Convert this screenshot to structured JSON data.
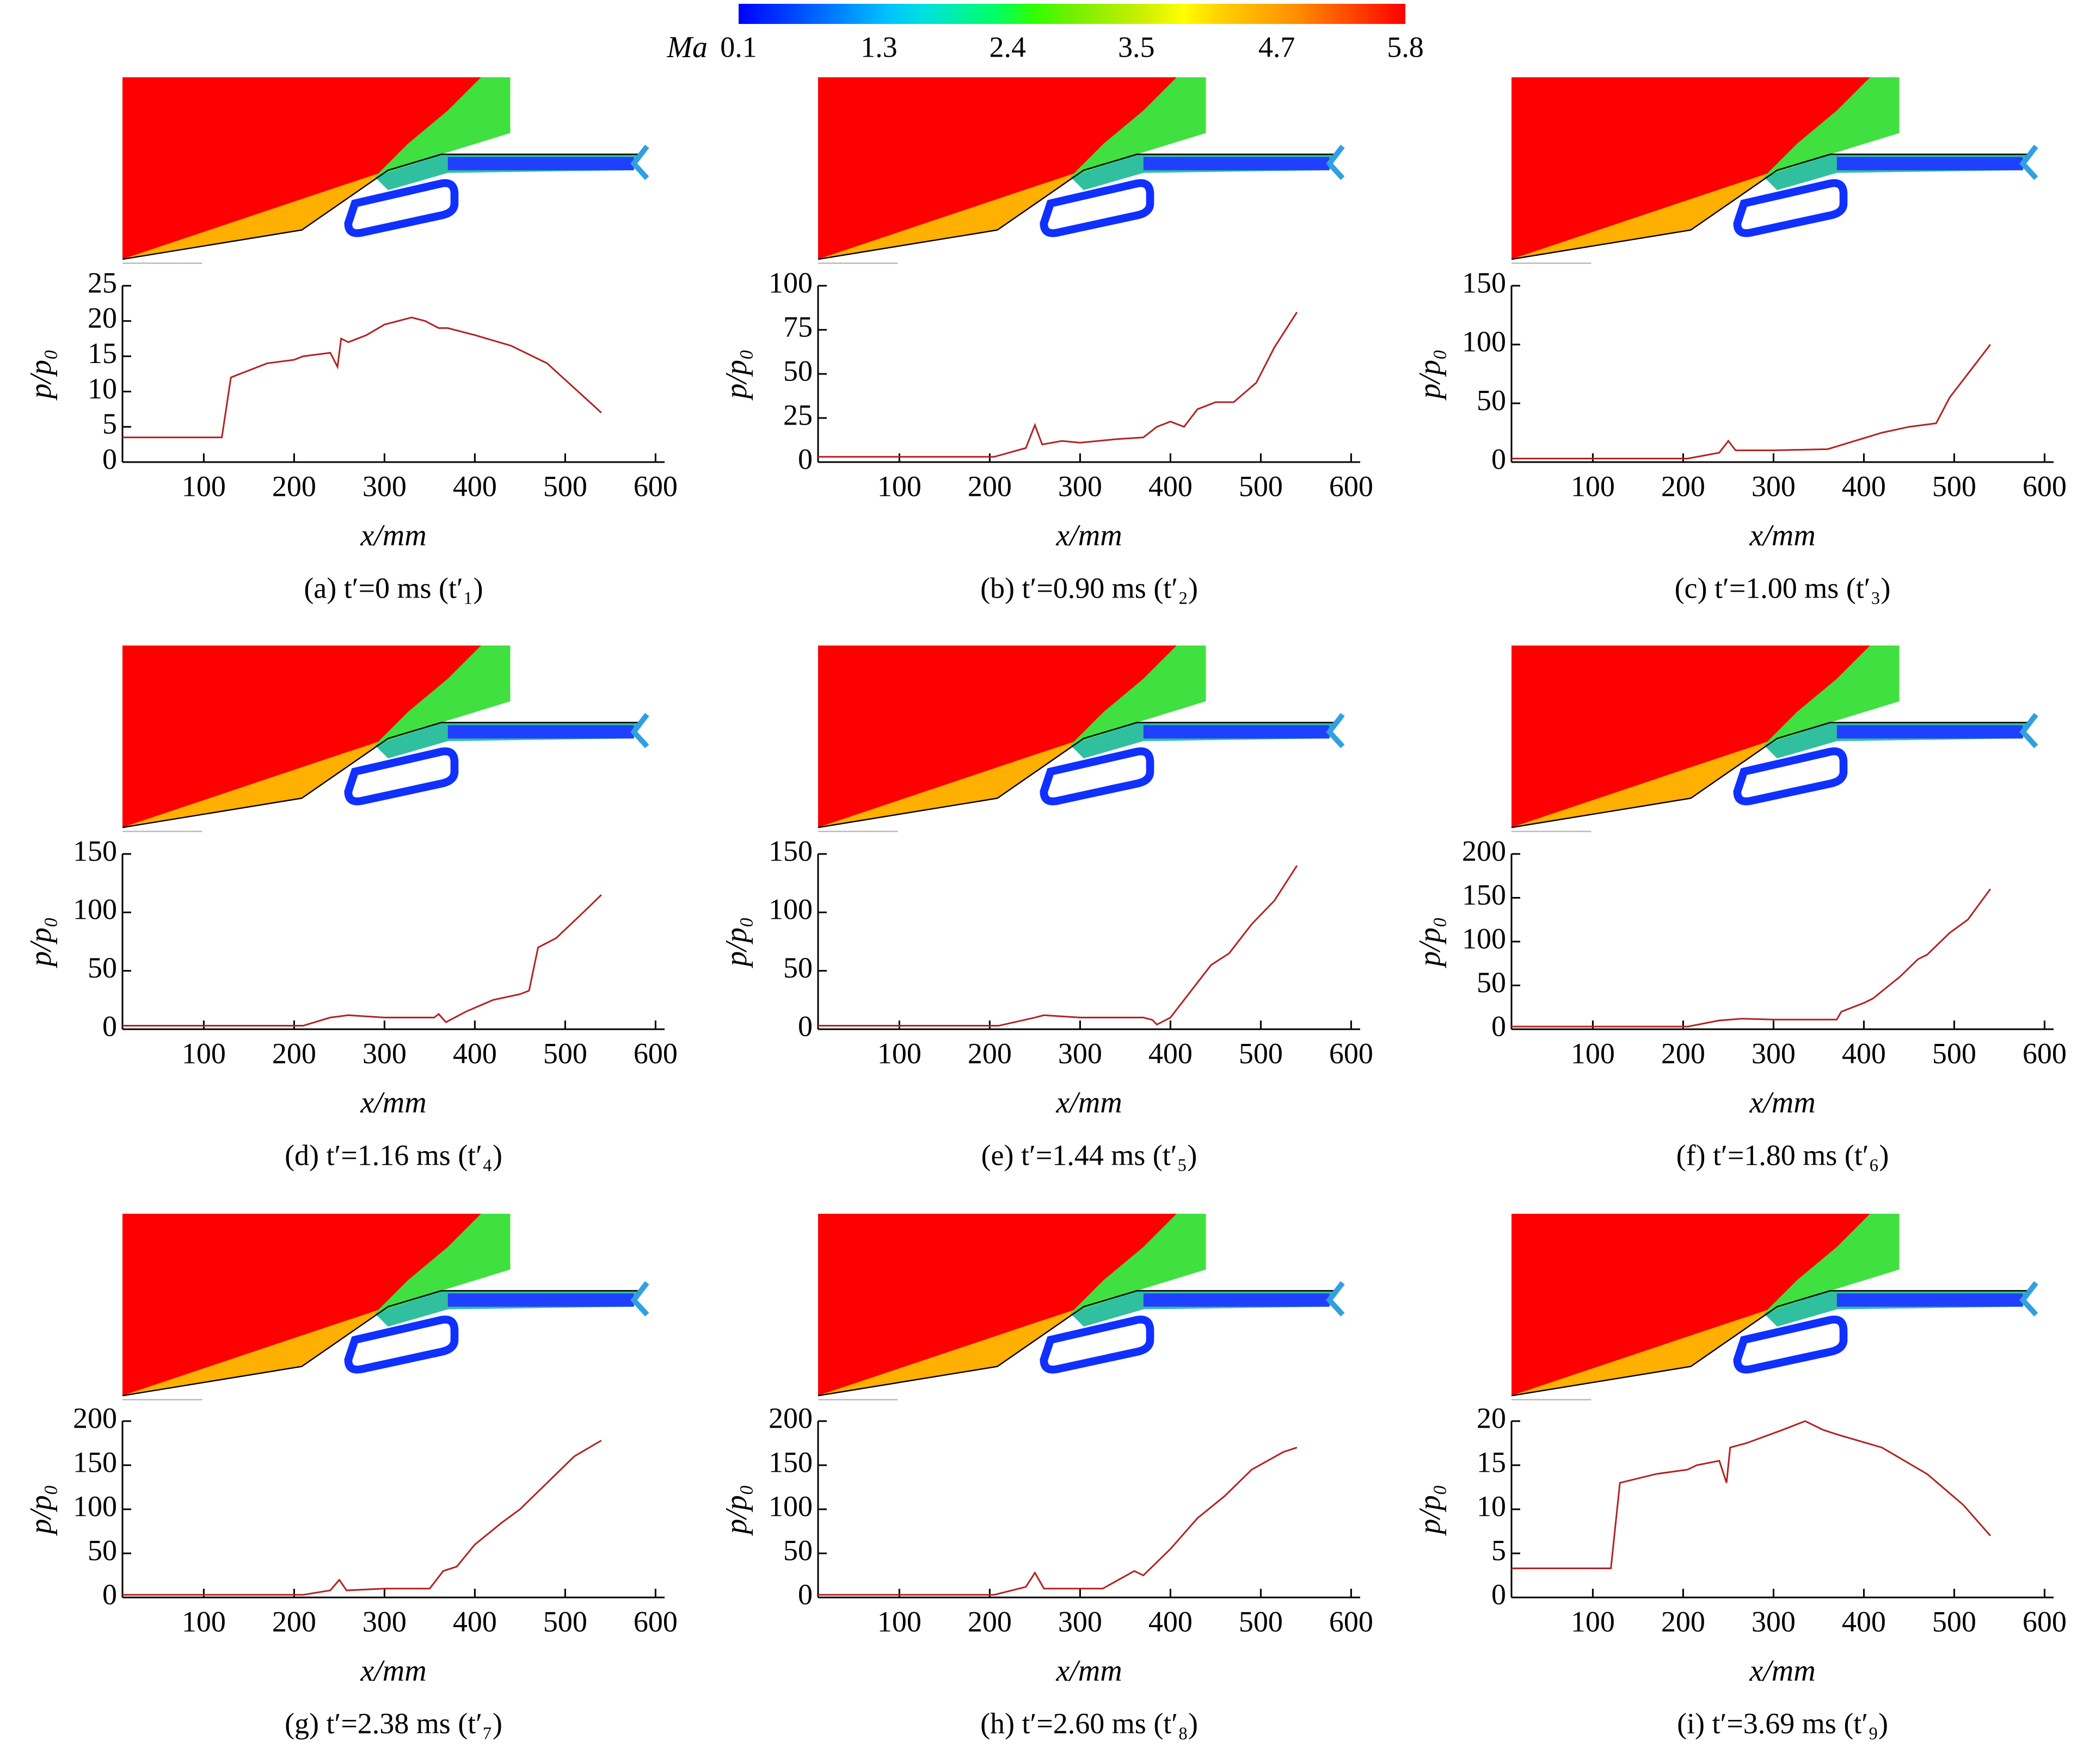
{
  "colorbar": {
    "label": "Ma",
    "ticks": [
      0.1,
      1.3,
      2.4,
      3.5,
      4.7,
      5.8
    ],
    "colors": [
      "#0000ff",
      "#0030ff",
      "#0060ff",
      "#0090ff",
      "#00c0ff",
      "#00e0e0",
      "#00f0a0",
      "#00ff60",
      "#30ff00",
      "#70f000",
      "#a0f000",
      "#d0f000",
      "#ffff00",
      "#ffd000",
      "#ffb000",
      "#ff9000",
      "#ff6000",
      "#ff3000",
      "#ff0000"
    ]
  },
  "chart_data": [
    {
      "type": "line",
      "caption": "(a) t′=0 ms (t′₁)",
      "xlabel": "x/mm",
      "ylabel": "p/p₀",
      "color": "#b22222",
      "xlim": [
        10,
        610
      ],
      "xticks": [
        100,
        200,
        300,
        400,
        500,
        600
      ],
      "ylim": [
        0,
        25
      ],
      "yticks": [
        0,
        5,
        10,
        15,
        20,
        25
      ],
      "x": [
        10,
        120,
        130,
        170,
        200,
        210,
        240,
        248,
        252,
        260,
        280,
        300,
        330,
        345,
        360,
        370,
        400,
        440,
        480,
        510,
        540
      ],
      "values": [
        3.5,
        3.5,
        12,
        14,
        14.5,
        15,
        15.5,
        13.5,
        17.5,
        17,
        18,
        19.5,
        20.5,
        20,
        19,
        19,
        18,
        16.5,
        14,
        10.5,
        7
      ]
    },
    {
      "type": "line",
      "caption": "(b) t′=0.90 ms (t′₂)",
      "xlabel": "x/mm",
      "ylabel": "p/p₀",
      "color": "#b22222",
      "xlim": [
        10,
        610
      ],
      "xticks": [
        100,
        200,
        300,
        400,
        500,
        600
      ],
      "ylim": [
        0,
        100
      ],
      "yticks": [
        0,
        25,
        50,
        75,
        100
      ],
      "x": [
        10,
        205,
        240,
        250,
        258,
        280,
        300,
        340,
        370,
        385,
        400,
        415,
        430,
        450,
        470,
        495,
        515,
        540
      ],
      "values": [
        3,
        3,
        8,
        21,
        10,
        12,
        11,
        13,
        14,
        20,
        23,
        20,
        30,
        34,
        34,
        45,
        65,
        85
      ]
    },
    {
      "type": "line",
      "caption": "(c) t′=1.00 ms (t′₃)",
      "xlabel": "x/mm",
      "ylabel": "p/p₀",
      "color": "#b22222",
      "xlim": [
        10,
        610
      ],
      "xticks": [
        100,
        200,
        300,
        400,
        500,
        600
      ],
      "ylim": [
        0,
        150
      ],
      "yticks": [
        0,
        50,
        100,
        150
      ],
      "x": [
        10,
        205,
        240,
        250,
        258,
        300,
        360,
        390,
        420,
        450,
        480,
        495,
        510,
        525,
        540
      ],
      "values": [
        3,
        3,
        8,
        18,
        10,
        10,
        11,
        18,
        25,
        30,
        33,
        55,
        70,
        85,
        100
      ]
    },
    {
      "type": "line",
      "caption": "(d) t′=1.16 ms (t′₄)",
      "xlabel": "x/mm",
      "ylabel": "p/p₀",
      "color": "#b22222",
      "xlim": [
        10,
        610
      ],
      "xticks": [
        100,
        200,
        300,
        400,
        500,
        600
      ],
      "ylim": [
        0,
        150
      ],
      "yticks": [
        0,
        50,
        100,
        150
      ],
      "x": [
        10,
        210,
        240,
        260,
        300,
        355,
        360,
        368,
        390,
        420,
        450,
        460,
        470,
        490,
        520,
        540
      ],
      "values": [
        3,
        3,
        10,
        12,
        10,
        10,
        13,
        6,
        15,
        25,
        30,
        33,
        70,
        78,
        100,
        115
      ]
    },
    {
      "type": "line",
      "caption": "(e) t′=1.44 ms (t′₅)",
      "xlabel": "x/mm",
      "ylabel": "p/p₀",
      "color": "#b22222",
      "xlim": [
        10,
        610
      ],
      "xticks": [
        100,
        200,
        300,
        400,
        500,
        600
      ],
      "ylim": [
        0,
        150
      ],
      "yticks": [
        0,
        50,
        100,
        150
      ],
      "x": [
        10,
        210,
        250,
        260,
        300,
        370,
        380,
        385,
        400,
        420,
        445,
        465,
        490,
        515,
        540
      ],
      "values": [
        3,
        3,
        10,
        12,
        10,
        10,
        8,
        4,
        10,
        30,
        55,
        65,
        90,
        110,
        140
      ]
    },
    {
      "type": "line",
      "caption": "(f) t′=1.80 ms (t′₆)",
      "xlabel": "x/mm",
      "ylabel": "p/p₀",
      "color": "#b22222",
      "xlim": [
        10,
        610
      ],
      "xticks": [
        100,
        200,
        300,
        400,
        500,
        600
      ],
      "ylim": [
        0,
        200
      ],
      "yticks": [
        0,
        50,
        100,
        150,
        200
      ],
      "x": [
        10,
        205,
        240,
        265,
        300,
        370,
        375,
        400,
        410,
        440,
        460,
        470,
        495,
        515,
        540
      ],
      "values": [
        3,
        3,
        10,
        12,
        11,
        11,
        20,
        30,
        35,
        60,
        80,
        85,
        110,
        125,
        160
      ]
    },
    {
      "type": "line",
      "caption": "(g) t′=2.38 ms (t′₇)",
      "xlabel": "x/mm",
      "ylabel": "p/p₀",
      "color": "#b22222",
      "xlim": [
        10,
        610
      ],
      "xticks": [
        100,
        200,
        300,
        400,
        500,
        600
      ],
      "ylim": [
        0,
        200
      ],
      "yticks": [
        0,
        50,
        100,
        150,
        200
      ],
      "x": [
        10,
        210,
        240,
        250,
        258,
        300,
        350,
        365,
        380,
        400,
        430,
        450,
        480,
        510,
        540
      ],
      "values": [
        3,
        3,
        8,
        20,
        8,
        10,
        10,
        30,
        35,
        60,
        85,
        100,
        130,
        160,
        178
      ]
    },
    {
      "type": "line",
      "caption": "(h) t′=2.60 ms (t′₈)",
      "xlabel": "x/mm",
      "ylabel": "p/p₀",
      "color": "#b22222",
      "xlim": [
        10,
        610
      ],
      "xticks": [
        100,
        200,
        300,
        400,
        500,
        600
      ],
      "ylim": [
        0,
        200
      ],
      "yticks": [
        0,
        50,
        100,
        150,
        200
      ],
      "x": [
        10,
        205,
        240,
        250,
        260,
        300,
        325,
        360,
        370,
        400,
        430,
        460,
        490,
        525,
        540
      ],
      "values": [
        3,
        3,
        12,
        28,
        10,
        10,
        10,
        30,
        25,
        55,
        90,
        115,
        145,
        165,
        170
      ]
    },
    {
      "type": "line",
      "caption": "(i) t′=3.69 ms (t′₉)",
      "xlabel": "x/mm",
      "ylabel": "p/p₀",
      "color": "#b22222",
      "xlim": [
        10,
        610
      ],
      "xticks": [
        100,
        200,
        300,
        400,
        500,
        600
      ],
      "ylim": [
        0,
        20
      ],
      "yticks": [
        0,
        5,
        10,
        15,
        20
      ],
      "x": [
        10,
        120,
        130,
        170,
        205,
        215,
        240,
        248,
        252,
        270,
        310,
        335,
        355,
        370,
        420,
        470,
        510,
        540
      ],
      "values": [
        3.3,
        3.3,
        13,
        14,
        14.5,
        15,
        15.5,
        13,
        17,
        17.5,
        19,
        20,
        19,
        18.5,
        17,
        14,
        10.5,
        7
      ]
    }
  ]
}
